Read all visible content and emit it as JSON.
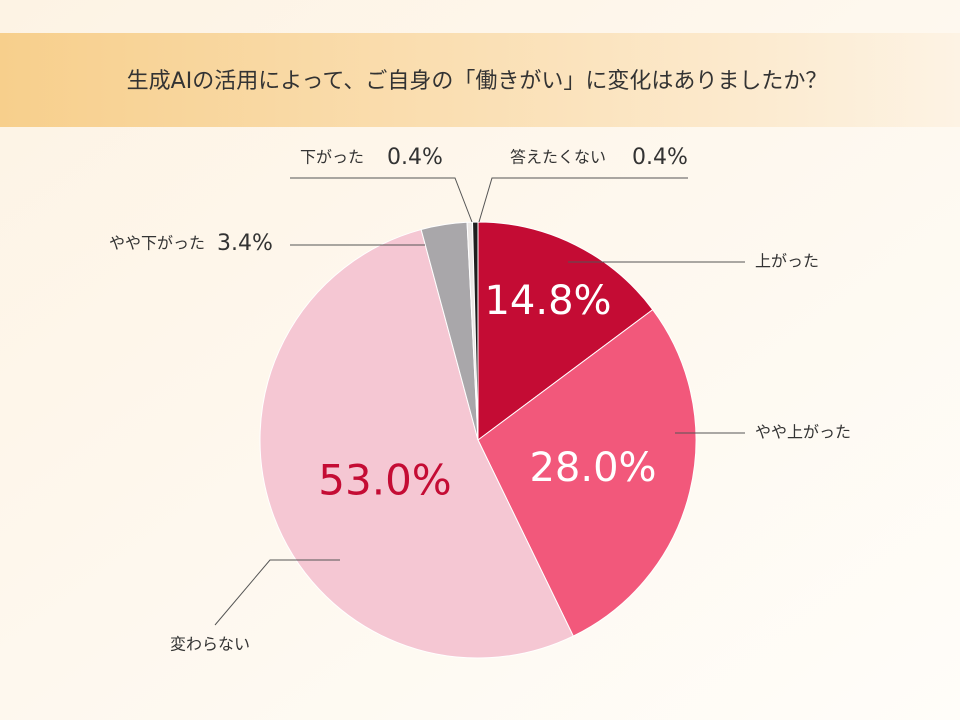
{
  "chart_data": {
    "type": "pie",
    "title": "生成AIの活用によって、ご自身の「働きがい」に変化はありましたか？",
    "categories": [
      "上がった",
      "やや上がった",
      "変わらない",
      "やや下がった",
      "下がった",
      "答えたくない"
    ],
    "values": [
      14.8,
      28.0,
      53.0,
      3.4,
      0.4,
      0.4
    ],
    "value_labels": [
      "14.8%",
      "28.0%",
      "53.0%",
      "3.4%",
      "0.4%",
      "0.4%"
    ],
    "colors": [
      "#c40c34",
      "#f2587b",
      "#f5c7d3",
      "#a9a7aa",
      "#ece8e6",
      "#1e1e1e"
    ]
  }
}
